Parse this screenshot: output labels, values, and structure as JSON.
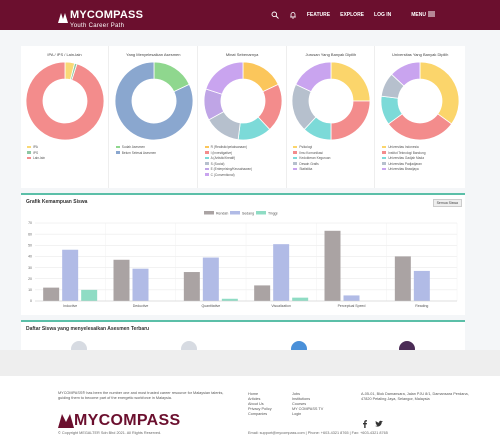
{
  "header": {
    "brand": "MYCOMPASS",
    "tagline": "Youth Career Path",
    "nav": [
      {
        "label": "FEATURE"
      },
      {
        "label": "EXPLORE"
      },
      {
        "label": "LOG IN"
      },
      {
        "label": "MENU"
      }
    ],
    "icons": [
      "search-icon",
      "bell-icon",
      "hamburger-icon"
    ],
    "colors": {
      "bar": "#6b0f2e",
      "text": "#ffffff"
    }
  },
  "donuts": [
    {
      "title": "IPA / IPS / Lain-lain",
      "slices": [
        {
          "label": "IPA",
          "value": 4,
          "color": "#f9d976"
        },
        {
          "label": "IPS",
          "value": 1,
          "color": "#8ec7a3"
        },
        {
          "label": "Lain-lain",
          "value": 95,
          "color": "#f38c8c"
        }
      ]
    },
    {
      "title": "Yang Menyelesaikan Asesmen",
      "slices": [
        {
          "label": "Sudah Asesmen",
          "value": 18,
          "color": "#8fd78e"
        },
        {
          "label": "Belum Selesai Asesmen",
          "value": 82,
          "color": "#8aa7cf"
        }
      ]
    },
    {
      "title": "Minat Sebenarnya",
      "slices": [
        {
          "label": "R (Realistic/pelaksanaan)",
          "value": 18,
          "color": "#fbc65b"
        },
        {
          "label": "I (Investigative)",
          "value": 20,
          "color": "#f38c8c"
        },
        {
          "label": "A (Artistic/Kreatif)",
          "value": 14,
          "color": "#7cdad8"
        },
        {
          "label": "S (Social)",
          "value": 15,
          "color": "#b6c0cd"
        },
        {
          "label": "E (Enterprising/Keusahawan)",
          "value": 13,
          "color": "#bfa5e6"
        },
        {
          "label": "C (Conventional)",
          "value": 20,
          "color": "#c9a4ef"
        }
      ]
    },
    {
      "title": "Jurusan Yang Banyak Dipilih",
      "slices": [
        {
          "label": "Psikologi",
          "value": 25,
          "color": "#fbd56b"
        },
        {
          "label": "Ilmu Komunikasi",
          "value": 25,
          "color": "#f38c8c"
        },
        {
          "label": "Kedokteran Keguruan",
          "value": 12,
          "color": "#7cdad8"
        },
        {
          "label": "Desain Grafis",
          "value": 20,
          "color": "#b6c0cd"
        },
        {
          "label": "Statistika",
          "value": 18,
          "color": "#c9a4ef"
        }
      ]
    },
    {
      "title": "Universitas Yang Banyak Dipilih",
      "slices": [
        {
          "label": "Universitas Indonesia",
          "value": 35,
          "color": "#fbd56b"
        },
        {
          "label": "Institut Teknologi Bandung",
          "value": 30,
          "color": "#f38c8c"
        },
        {
          "label": "Universitas Gadjah Mada",
          "value": 12,
          "color": "#7cdad8"
        },
        {
          "label": "Universitas Padjadjaran",
          "value": 10,
          "color": "#b6c0cd"
        },
        {
          "label": "Universitas Brawijaya",
          "value": 13,
          "color": "#c9a4ef"
        }
      ]
    }
  ],
  "bar_section": {
    "title": "Grafik Kemampuan Siswa",
    "button_label": "Semua Siswa"
  },
  "chart_data": {
    "type": "bar",
    "categories": [
      "Inductive",
      "Deductive",
      "Quantitative",
      "Visualization",
      "Perceptual Speed",
      "Reading"
    ],
    "series": [
      {
        "name": "Rendah",
        "color": "#aaa3a3",
        "values": [
          12,
          37,
          26,
          14,
          63,
          40
        ]
      },
      {
        "name": "Sedang",
        "color": "#b1bbe6",
        "values": [
          46,
          29,
          39,
          51,
          5,
          27
        ]
      },
      {
        "name": "Tinggi",
        "color": "#8fdcc4",
        "values": [
          10,
          0,
          2,
          3,
          0,
          0
        ]
      }
    ],
    "yticks": [
      0,
      10,
      20,
      30,
      40,
      50,
      60,
      70
    ],
    "ylim": [
      0,
      70
    ],
    "grid": true,
    "legend": "top-center",
    "xlabel": "",
    "ylabel": ""
  },
  "list_section": {
    "title": "Daftar Siswa yang menyelesaikan Asesmen Terbaru",
    "avatars": [
      {
        "color": "#d7dbe2"
      },
      {
        "color": "#d7dbe2"
      },
      {
        "color": "#4a90d9"
      },
      {
        "color": "#4b2c56"
      }
    ]
  },
  "footer": {
    "about": "MYCOMPASS® has been the number one and most trusted career resource for Malaysian talents, guiding them to become part of the energetic workforce in Malaysia.",
    "brand": "MYCOMPASS",
    "copyright": "© Copyright MEGALTER Sdn Bhd 2021. All Rights Reserved.",
    "links_col1": [
      "Home",
      "Articles",
      "About Us",
      "Privacy Policy",
      "Companies"
    ],
    "links_col2": [
      "Jobs",
      "Institutions",
      "Courses",
      "MY COMPASS TV",
      "Login"
    ],
    "address": "A-05-01, Blok Damansara, Jalan PJU 8/1, Damansara Perdana, 47820 Petaling Jaya, Selangor, Malaysia",
    "contact": "Email: support@mycompass.com | Phone: +603-4321 8765 | Fax: +603-4321 8765",
    "social": [
      "facebook-icon",
      "twitter-icon"
    ]
  }
}
